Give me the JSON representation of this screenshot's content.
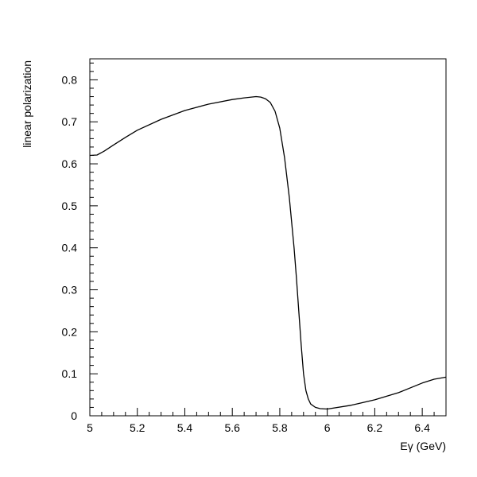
{
  "chart_data": {
    "type": "line",
    "title": "",
    "xlabel": "Eγ (GeV)",
    "ylabel": "linear polarization",
    "xlim": [
      5.0,
      6.5
    ],
    "ylim": [
      0.0,
      0.85
    ],
    "x_ticks": [
      "5",
      "5.2",
      "5.4",
      "5.6",
      "5.8",
      "6",
      "6.2",
      "6.4"
    ],
    "y_ticks": [
      "0",
      "0.1",
      "0.2",
      "0.3",
      "0.4",
      "0.5",
      "0.6",
      "0.7",
      "0.8"
    ],
    "grid": false,
    "legend": "none",
    "series": [
      {
        "color": "#000000",
        "x": [
          5.0,
          5.03,
          5.06,
          5.1,
          5.15,
          5.2,
          5.3,
          5.4,
          5.5,
          5.6,
          5.65,
          5.7,
          5.72,
          5.74,
          5.76,
          5.78,
          5.8,
          5.82,
          5.84,
          5.86,
          5.87,
          5.88,
          5.89,
          5.9,
          5.91,
          5.92,
          5.93,
          5.95,
          5.97,
          6.0,
          6.1,
          6.2,
          6.3,
          6.4,
          6.45,
          6.5
        ],
        "y": [
          0.62,
          0.621,
          0.63,
          0.645,
          0.663,
          0.68,
          0.706,
          0.727,
          0.742,
          0.753,
          0.757,
          0.76,
          0.759,
          0.755,
          0.746,
          0.725,
          0.685,
          0.615,
          0.52,
          0.4,
          0.33,
          0.25,
          0.17,
          0.1,
          0.06,
          0.04,
          0.028,
          0.02,
          0.017,
          0.016,
          0.025,
          0.038,
          0.055,
          0.078,
          0.087,
          0.092
        ]
      }
    ]
  }
}
